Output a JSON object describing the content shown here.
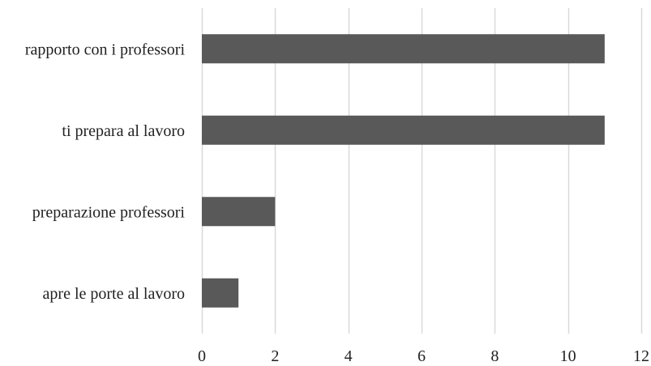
{
  "chart_data": {
    "type": "bar",
    "orientation": "horizontal",
    "categories": [
      "rapporto con i professori",
      "ti prepara al lavoro",
      "preparazione professori",
      "apre le porte al lavoro"
    ],
    "values": [
      11,
      11,
      2,
      1
    ],
    "xlim": [
      0,
      12
    ],
    "x_ticks": [
      0,
      2,
      4,
      6,
      8,
      10,
      12
    ],
    "x_tick_labels": [
      "0",
      "2",
      "4",
      "6",
      "8",
      "10",
      "12"
    ],
    "grid": true,
    "legend": "none",
    "bar_color": "#595959",
    "grid_color": "#d9d9d9"
  }
}
